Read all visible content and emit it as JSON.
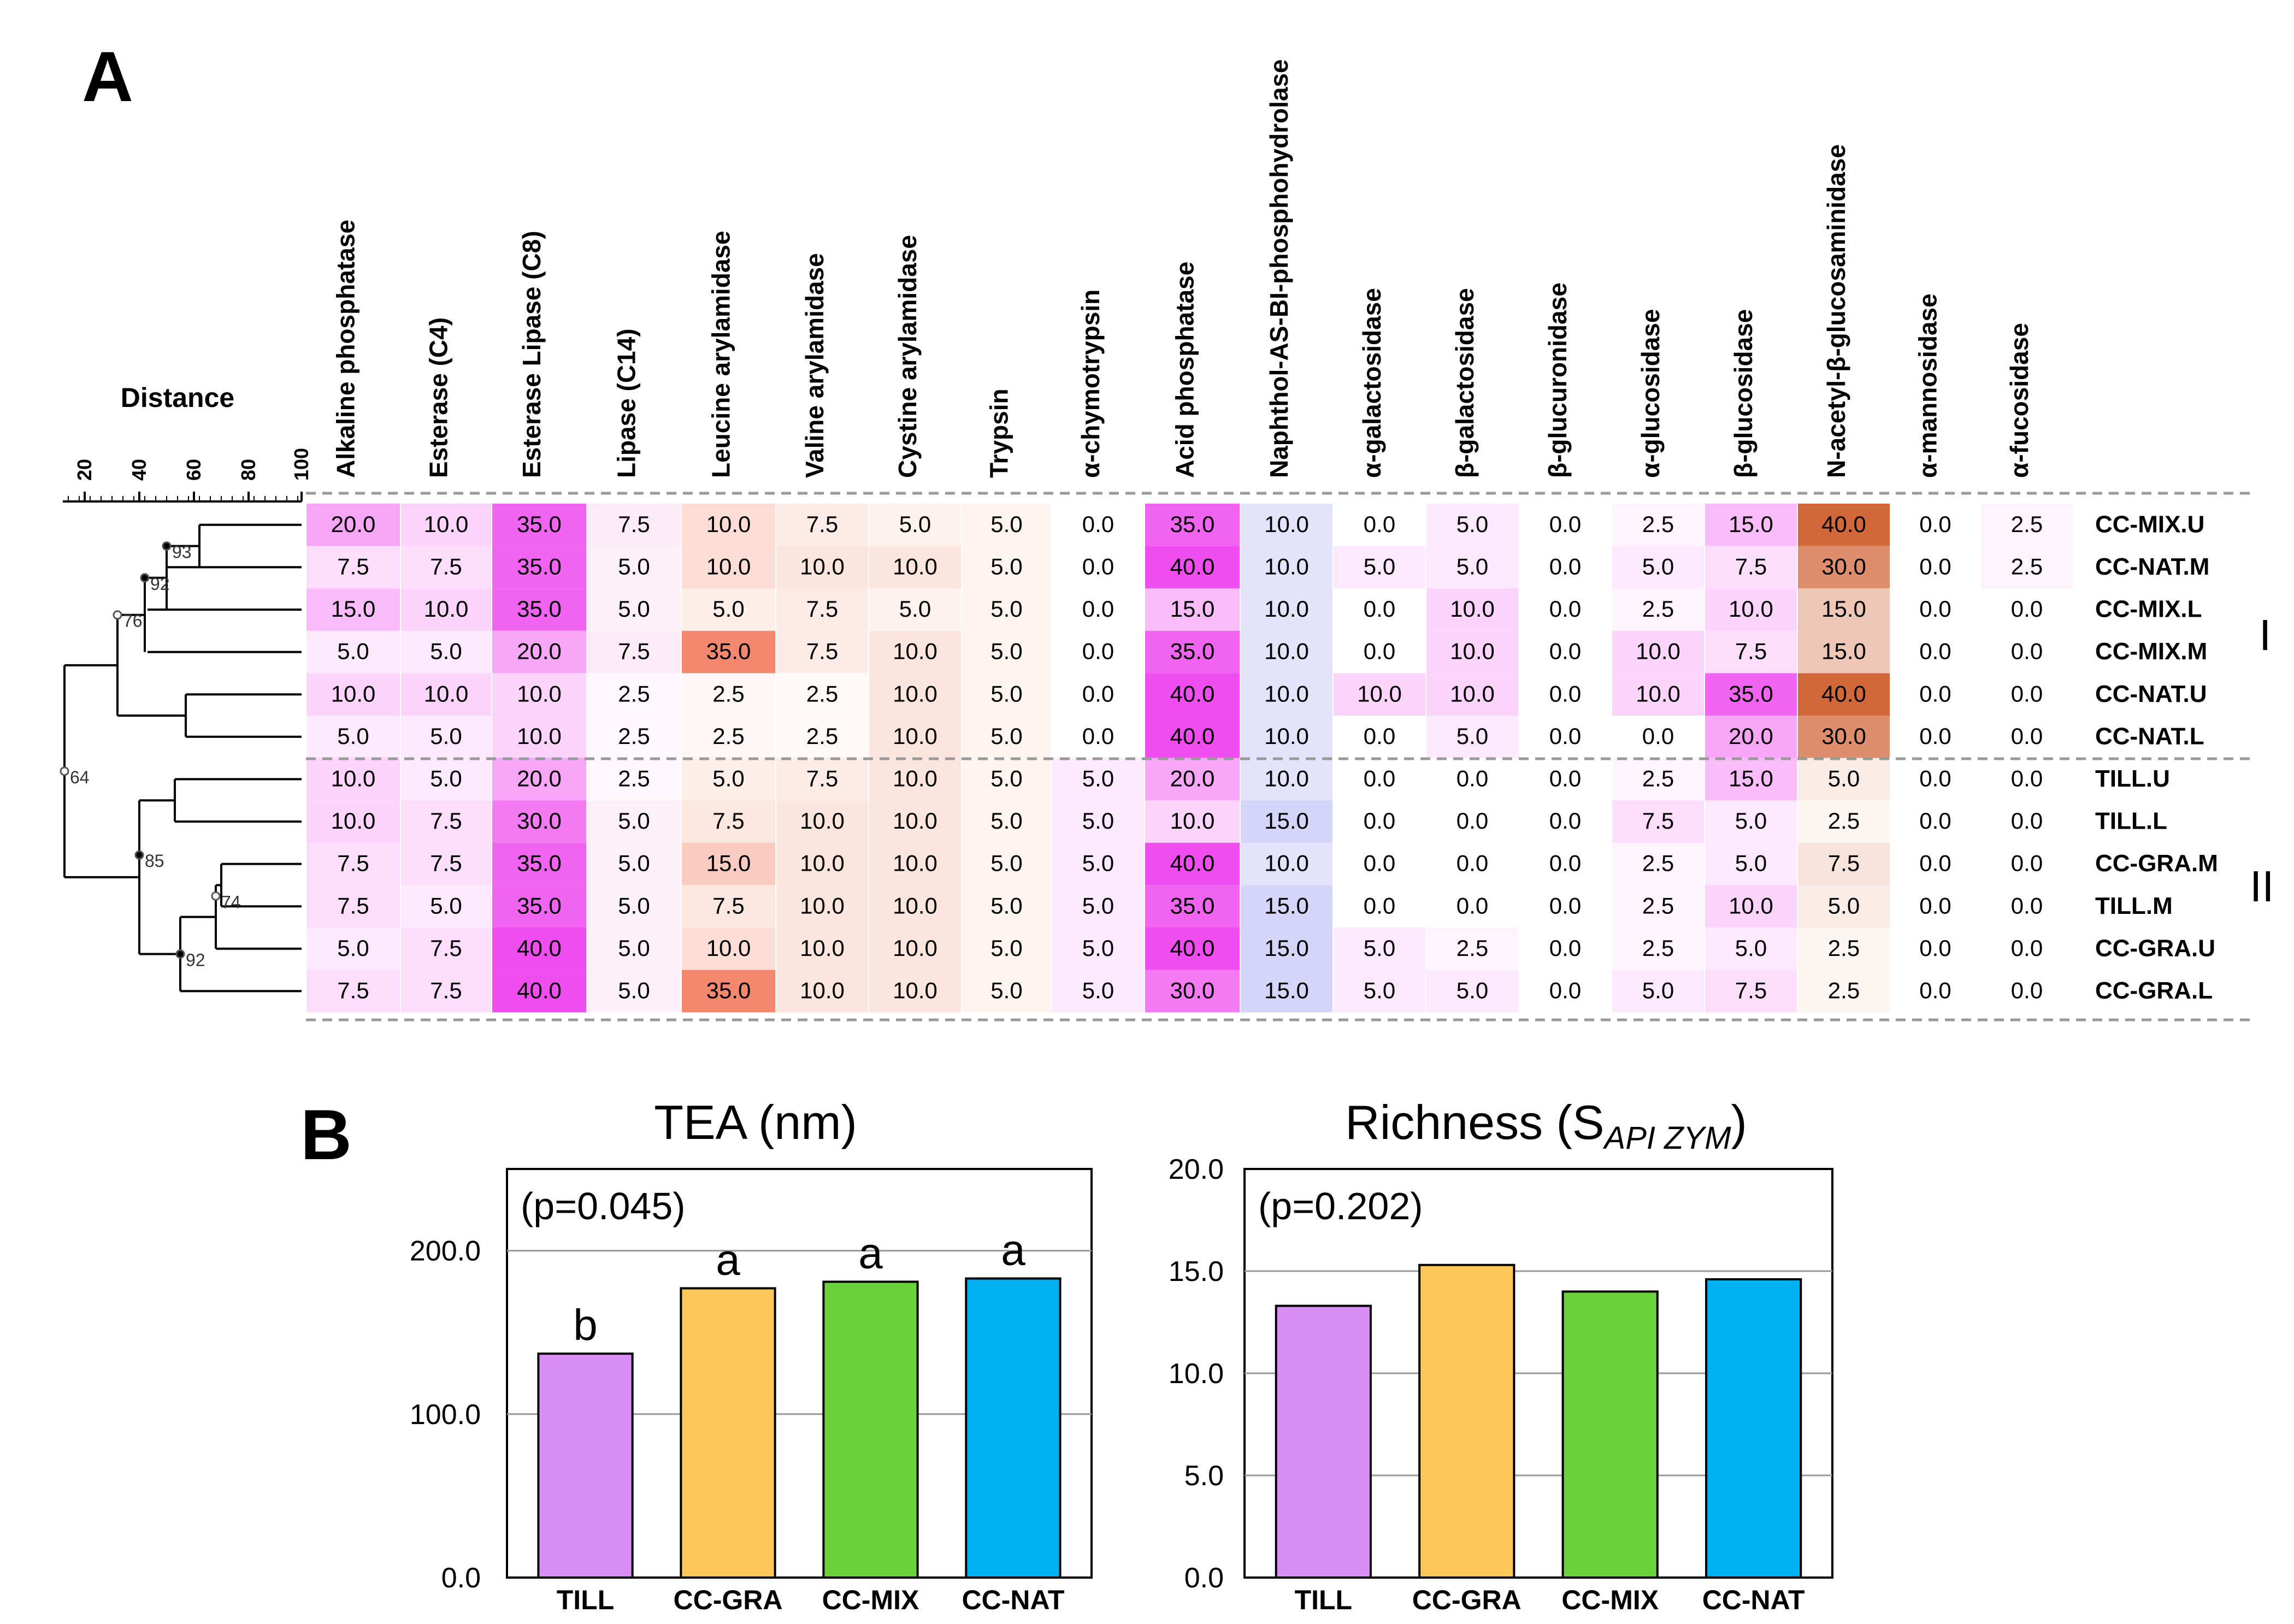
{
  "panel_a_label": "A",
  "panel_b_label": "B",
  "dendrogram": {
    "title": "Distance",
    "axis_ticks": [
      "20",
      "40",
      "60",
      "80",
      "100"
    ],
    "bootstrap": [
      "93",
      "92",
      "76",
      "64",
      "85",
      "74",
      "92"
    ]
  },
  "cluster_labels": [
    "I",
    "II"
  ],
  "chart_data": [
    {
      "type": "heatmap",
      "title": "",
      "columns": [
        "Alkaline phosphatase",
        "Esterase (C4)",
        "Esterase  Lipase (C8)",
        "Lipase (C14)",
        "Leucine arylamidase",
        "Valine arylamidase",
        "Cystine arylamidase",
        "Trypsin",
        "α-chymotrypsin",
        "Acid phosphatase",
        "Naphthol-AS-BI-phosphohydrolase",
        "α-galactosidase",
        "β-galactosidase",
        "β-glucuronidase",
        "α-glucosidase",
        "β-glucosidase",
        "N-acetyl-β-glucosaminidase",
        "α-mannosidase",
        "α-fucosidase"
      ],
      "rows": [
        "CC-MIX.U",
        "CC-NAT.M",
        "CC-MIX.L",
        "CC-MIX.M",
        "CC-NAT.U",
        "CC-NAT.L",
        "TILL.U",
        "TILL.L",
        "CC-GRA.M",
        "TILL.M",
        "CC-GRA.U",
        "CC-GRA.L"
      ],
      "values": [
        [
          "20.0",
          "10.0",
          "35.0",
          "7.5",
          "10.0",
          "7.5",
          "5.0",
          "5.0",
          "0.0",
          "35.0",
          "10.0",
          "0.0",
          "5.0",
          "0.0",
          "2.5",
          "15.0",
          "40.0",
          "0.0",
          "2.5"
        ],
        [
          "7.5",
          "7.5",
          "35.0",
          "5.0",
          "10.0",
          "10.0",
          "10.0",
          "5.0",
          "0.0",
          "40.0",
          "10.0",
          "5.0",
          "5.0",
          "0.0",
          "5.0",
          "7.5",
          "30.0",
          "0.0",
          "2.5"
        ],
        [
          "15.0",
          "10.0",
          "35.0",
          "5.0",
          "5.0",
          "7.5",
          "5.0",
          "5.0",
          "0.0",
          "15.0",
          "10.0",
          "0.0",
          "10.0",
          "0.0",
          "2.5",
          "10.0",
          "15.0",
          "0.0",
          "0.0"
        ],
        [
          "5.0",
          "5.0",
          "20.0",
          "7.5",
          "35.0",
          "7.5",
          "10.0",
          "5.0",
          "0.0",
          "35.0",
          "10.0",
          "0.0",
          "10.0",
          "0.0",
          "10.0",
          "7.5",
          "15.0",
          "0.0",
          "0.0"
        ],
        [
          "10.0",
          "10.0",
          "10.0",
          "2.5",
          "2.5",
          "2.5",
          "10.0",
          "5.0",
          "0.0",
          "40.0",
          "10.0",
          "10.0",
          "10.0",
          "0.0",
          "10.0",
          "35.0",
          "40.0",
          "0.0",
          "0.0"
        ],
        [
          "5.0",
          "5.0",
          "10.0",
          "2.5",
          "2.5",
          "2.5",
          "10.0",
          "5.0",
          "0.0",
          "40.0",
          "10.0",
          "0.0",
          "5.0",
          "0.0",
          "0.0",
          "20.0",
          "30.0",
          "0.0",
          "0.0"
        ],
        [
          "10.0",
          "5.0",
          "20.0",
          "2.5",
          "5.0",
          "7.5",
          "10.0",
          "5.0",
          "5.0",
          "20.0",
          "10.0",
          "0.0",
          "0.0",
          "0.0",
          "2.5",
          "15.0",
          "5.0",
          "0.0",
          "0.0"
        ],
        [
          "10.0",
          "7.5",
          "30.0",
          "5.0",
          "7.5",
          "10.0",
          "10.0",
          "5.0",
          "5.0",
          "10.0",
          "15.0",
          "0.0",
          "0.0",
          "0.0",
          "7.5",
          "5.0",
          "2.5",
          "0.0",
          "0.0"
        ],
        [
          "7.5",
          "7.5",
          "35.0",
          "5.0",
          "15.0",
          "10.0",
          "10.0",
          "5.0",
          "5.0",
          "40.0",
          "10.0",
          "0.0",
          "0.0",
          "0.0",
          "2.5",
          "5.0",
          "7.5",
          "0.0",
          "0.0"
        ],
        [
          "7.5",
          "5.0",
          "35.0",
          "5.0",
          "7.5",
          "10.0",
          "10.0",
          "5.0",
          "5.0",
          "35.0",
          "15.0",
          "0.0",
          "0.0",
          "0.0",
          "2.5",
          "10.0",
          "5.0",
          "0.0",
          "0.0"
        ],
        [
          "5.0",
          "7.5",
          "40.0",
          "5.0",
          "10.0",
          "10.0",
          "10.0",
          "5.0",
          "5.0",
          "40.0",
          "15.0",
          "5.0",
          "2.5",
          "0.0",
          "2.5",
          "5.0",
          "2.5",
          "0.0",
          "0.0"
        ],
        [
          "7.5",
          "7.5",
          "40.0",
          "5.0",
          "35.0",
          "10.0",
          "10.0",
          "5.0",
          "5.0",
          "30.0",
          "15.0",
          "5.0",
          "5.0",
          "0.0",
          "5.0",
          "7.5",
          "2.5",
          "0.0",
          "0.0"
        ]
      ],
      "color_families": [
        "#ee44ee",
        "#ee44ee",
        "#ee44ee",
        "#ee88cc",
        "#f07050",
        "#f09070",
        "#f09070",
        "#f0a080",
        "#ee44ee",
        "#ee44ee",
        "#8888ee",
        "#ee44ee",
        "#ee44ee",
        "#ee44ee",
        "#ee44ee",
        "#ee44ee",
        "#d06030",
        "#ee44ee",
        "#ee44ee"
      ],
      "vmax": 40
    },
    {
      "type": "bar",
      "title": "TEA (nm)",
      "annotation": "(p=0.045)",
      "categories": [
        "TILL",
        "CC-GRA",
        "CC-MIX",
        "CC-NAT"
      ],
      "values": [
        137,
        177,
        181,
        183
      ],
      "letters": [
        "b",
        "a",
        "a",
        "a"
      ],
      "colors": [
        "#d98ef5",
        "#fdc75a",
        "#6ad33c",
        "#01b0f0"
      ],
      "ylim": [
        0,
        250
      ],
      "yticks": [
        "0.0",
        "100.0",
        "200.0"
      ],
      "xlabel": "",
      "ylabel": ""
    },
    {
      "type": "bar",
      "title": "Richness (S",
      "title_subscript": "API ZYM",
      "title_end": ")",
      "annotation": "(p=0.202)",
      "categories": [
        "TILL",
        "CC-GRA",
        "CC-MIX",
        "CC-NAT"
      ],
      "values": [
        13.3,
        15.3,
        14.0,
        14.6
      ],
      "colors": [
        "#d98ef5",
        "#fdc75a",
        "#6ad33c",
        "#01b0f0"
      ],
      "ylim": [
        0,
        20
      ],
      "yticks": [
        "0.0",
        "5.0",
        "10.0",
        "15.0",
        "20.0"
      ],
      "xlabel": "",
      "ylabel": ""
    }
  ]
}
